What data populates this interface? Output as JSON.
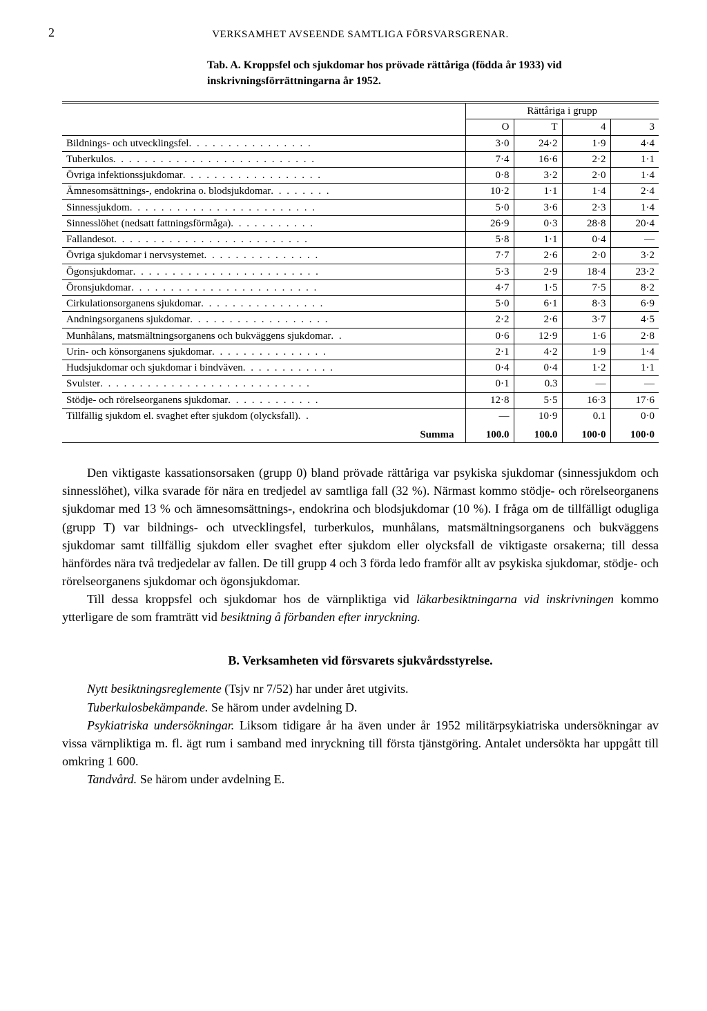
{
  "page_number": "2",
  "running_head": "VERKSAMHET AVSEENDE SAMTLIGA FÖRSVARSGRENAR.",
  "table_title": "Tab. A. Kroppsfel och sjukdomar hos prövade rättåriga (födda år 1933) vid inskrivningsförrättningarna år 1952.",
  "group_header": "Rättåriga i grupp",
  "col_headers": {
    "c0": "O",
    "c1": "T",
    "c2": "4",
    "c3": "3"
  },
  "rows": [
    {
      "label": "Bildnings- och utvecklingsfel",
      "v": [
        "3·0",
        "24·2",
        "1·9",
        "4·4"
      ]
    },
    {
      "label": "Tuberkulos",
      "v": [
        "7·4",
        "16·6",
        "2·2",
        "1·1"
      ]
    },
    {
      "label": "Övriga infektionssjukdomar",
      "v": [
        "0·8",
        "3·2",
        "2·0",
        "1·4"
      ]
    },
    {
      "label": "Ämnesomsättnings-, endokrina o. blodsjukdomar",
      "v": [
        "10·2",
        "1·1",
        "1·4",
        "2·4"
      ]
    },
    {
      "label": "Sinnessjukdom",
      "v": [
        "5·0",
        "3·6",
        "2·3",
        "1·4"
      ]
    },
    {
      "label": "Sinnesslöhet (nedsatt fattningsförmåga)",
      "v": [
        "26·9",
        "0·3",
        "28·8",
        "20·4"
      ]
    },
    {
      "label": "Fallandesot",
      "v": [
        "5·8",
        "1·1",
        "0·4",
        "—"
      ]
    },
    {
      "label": "Övriga sjukdomar i nervsystemet",
      "v": [
        "7·7",
        "2·6",
        "2·0",
        "3·2"
      ]
    },
    {
      "label": "Ögonsjukdomar",
      "v": [
        "5·3",
        "2·9",
        "18·4",
        "23·2"
      ]
    },
    {
      "label": "Öronsjukdomar",
      "v": [
        "4·7",
        "1·5",
        "7·5",
        "8·2"
      ]
    },
    {
      "label": "Cirkulationsorganens sjukdomar",
      "v": [
        "5·0",
        "6·1",
        "8·3",
        "6·9"
      ]
    },
    {
      "label": "Andningsorganens sjukdomar",
      "v": [
        "2·2",
        "2·6",
        "3·7",
        "4·5"
      ]
    },
    {
      "label": "Munhålans, matsmältningsorganens och bukväggens sjukdomar",
      "v": [
        "0·6",
        "12·9",
        "1·6",
        "2·8"
      ]
    },
    {
      "label": "Urin- och könsorganens sjukdomar",
      "v": [
        "2·1",
        "4·2",
        "1·9",
        "1·4"
      ]
    },
    {
      "label": "Hudsjukdomar och sjukdomar i bindväven",
      "v": [
        "0·4",
        "0·4",
        "1·2",
        "1·1"
      ]
    },
    {
      "label": "Svulster",
      "v": [
        "0·1",
        "0.3",
        "—",
        "—"
      ]
    },
    {
      "label": "Stödje- och rörelseorganens sjukdomar",
      "v": [
        "12·8",
        "5·5",
        "16·3",
        "17·6"
      ]
    },
    {
      "label": "Tillfällig sjukdom el. svaghet efter sjukdom (olycksfall)",
      "v": [
        "—",
        "10·9",
        "0.1",
        "0·0"
      ]
    }
  ],
  "summa_label": "Summa",
  "summa": [
    "100.0",
    "100.0",
    "100·0",
    "100·0"
  ],
  "para1": "Den viktigaste kassationsorsaken (grupp 0) bland prövade rättåriga var psykiska sjukdomar (sinnessjukdom och sinnesslöhet), vilka svarade för nära en tredjedel av samtliga fall (32 %). Närmast kommo stödje- och rörelseorganens sjukdomar med 13 % och ämnesomsättnings-, endokrina och blodsjukdomar (10 %). I fråga om de tillfälligt odugliga (grupp T) var bildnings- och utvecklingsfel, turberkulos, munhålans, matsmältningsorganens och bukväggens sjukdomar samt tillfällig sjukdom eller svaghet efter sjukdom eller olycksfall de viktigaste orsakerna; till dessa hänfördes nära två tredjedelar av fallen. De till grupp 4 och 3 förda ledo framför allt av psykiska sjukdomar, stödje- och rörelseorganens sjukdomar och ögonsjukdomar.",
  "para2_a": "Till dessa kroppsfel och sjukdomar hos de värnpliktiga vid ",
  "para2_i1": "läkarbesiktningarna vid inskrivningen",
  "para2_b": " kommo ytterligare de som framträtt vid ",
  "para2_i2": "besiktning å förbanden efter inryckning.",
  "section_b_head": "B.  Verksamheten vid försvarets sjukvårdsstyrelse.",
  "b1_i": "Nytt besiktningsreglemente",
  "b1_t": " (Tsjv nr 7/52) har under året utgivits.",
  "b2_i": "Tuberkulosbekämpande.",
  "b2_t": " Se härom under avdelning D.",
  "b3_i": "Psykiatriska undersökningar.",
  "b3_t": " Liksom tidigare år ha även under år 1952 militärpsykiatriska undersökningar av vissa värnpliktiga m. fl. ägt rum i samband med inryckning till första tjänstgöring. Antalet undersökta har uppgått till omkring 1 600.",
  "b4_i": "Tandvård.",
  "b4_t": " Se härom under avdelning E."
}
